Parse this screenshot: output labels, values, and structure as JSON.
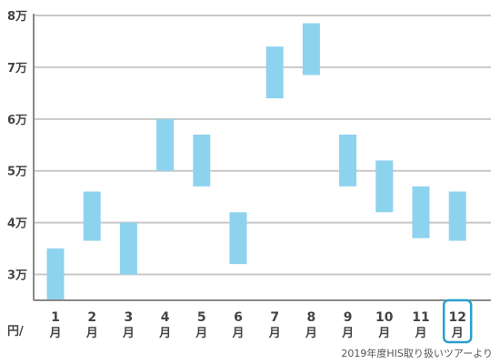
{
  "chart_data": {
    "type": "floating-bar",
    "unit_label": "円/",
    "source": "2019年度HIS取り扱いツアーより",
    "categories": [
      {
        "num": "1",
        "unit": "月"
      },
      {
        "num": "2",
        "unit": "月"
      },
      {
        "num": "3",
        "unit": "月"
      },
      {
        "num": "4",
        "unit": "月"
      },
      {
        "num": "5",
        "unit": "月"
      },
      {
        "num": "6",
        "unit": "月"
      },
      {
        "num": "7",
        "unit": "月"
      },
      {
        "num": "8",
        "unit": "月"
      },
      {
        "num": "9",
        "unit": "月"
      },
      {
        "num": "10",
        "unit": "月"
      },
      {
        "num": "11",
        "unit": "月"
      },
      {
        "num": "12",
        "unit": "月"
      }
    ],
    "ranges": [
      [
        25000,
        35000
      ],
      [
        36500,
        46000
      ],
      [
        30000,
        40000
      ],
      [
        50000,
        60000
      ],
      [
        47000,
        57000
      ],
      [
        32000,
        42000
      ],
      [
        64000,
        74000
      ],
      [
        68500,
        78500
      ],
      [
        47000,
        57000
      ],
      [
        42000,
        52000
      ],
      [
        37000,
        47000
      ],
      [
        36500,
        46000
      ]
    ],
    "yticks": [
      {
        "value": 30000,
        "label": "3万"
      },
      {
        "value": 40000,
        "label": "4万"
      },
      {
        "value": 50000,
        "label": "5万"
      },
      {
        "value": 60000,
        "label": "6万"
      },
      {
        "value": 70000,
        "label": "7万"
      },
      {
        "value": 80000,
        "label": "8万"
      }
    ],
    "ylim": [
      25000,
      80000
    ],
    "highlighted_category": "12",
    "colors": {
      "bar": "#8dd3ee",
      "grid": "#c8c8c8",
      "axis": "#888888",
      "highlight": "#2a9fd0"
    },
    "grid": true
  }
}
